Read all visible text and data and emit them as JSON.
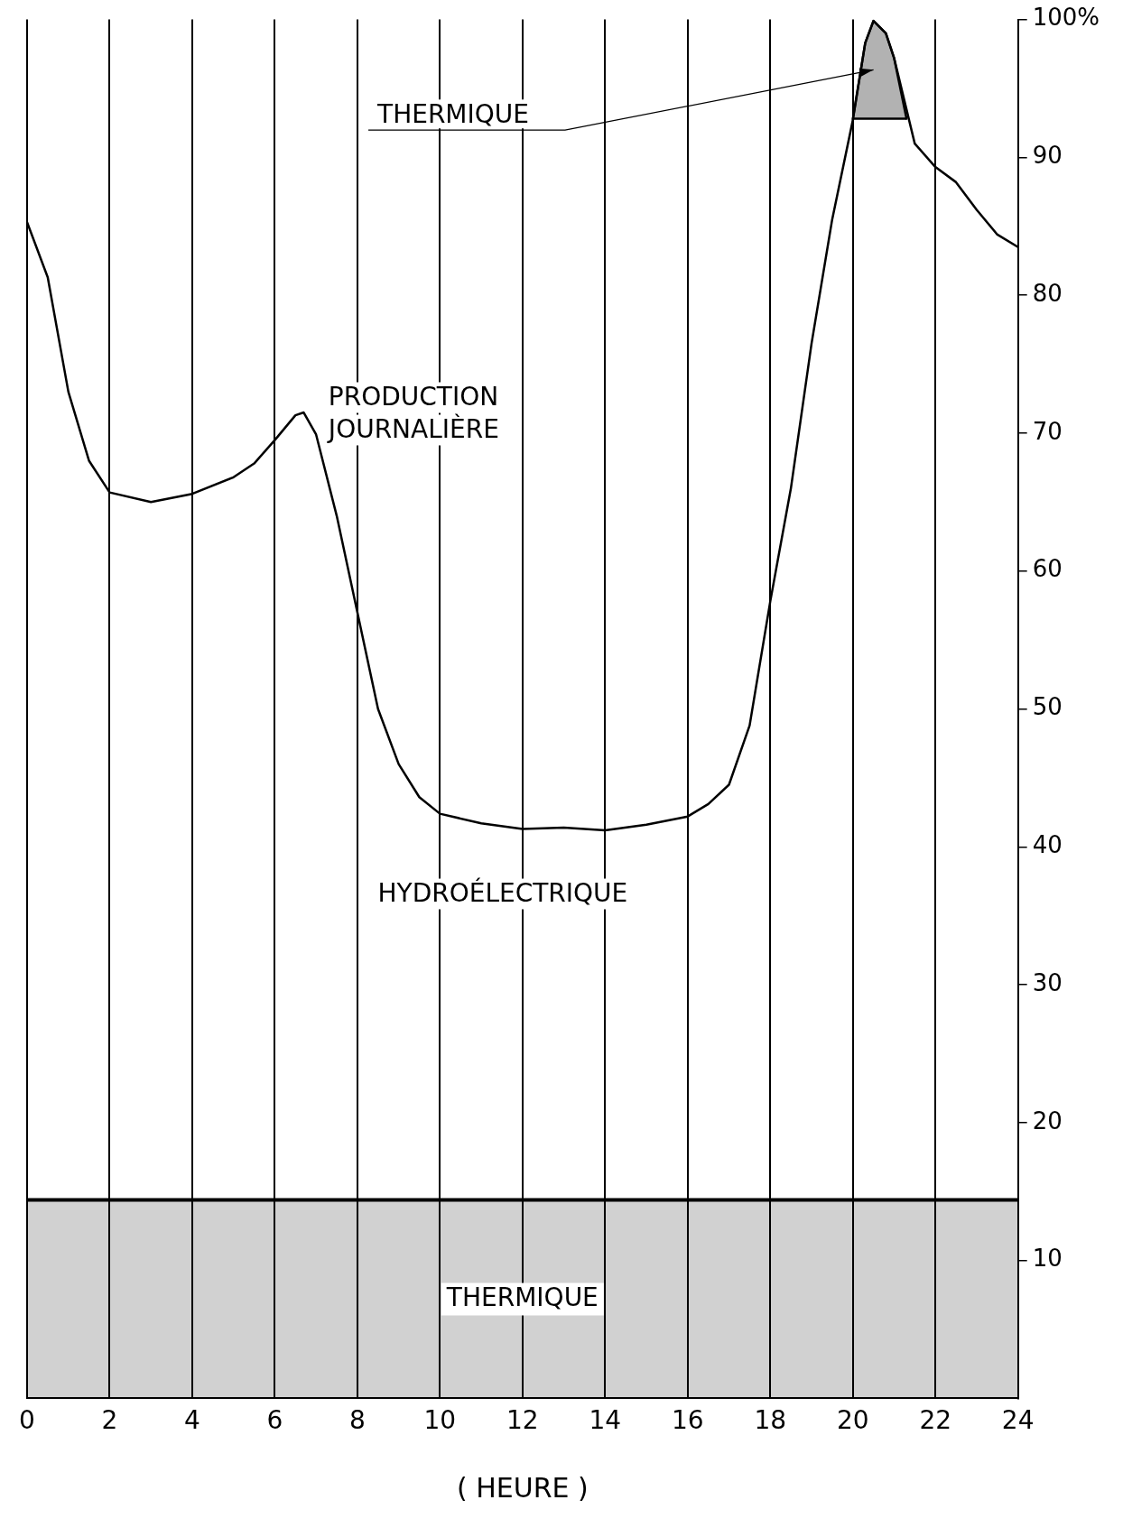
{
  "chart_data": {
    "type": "line",
    "xlabel": "( HEURE )",
    "xlim": [
      0,
      24
    ],
    "xticks": [
      0,
      2,
      4,
      6,
      8,
      10,
      12,
      14,
      16,
      18,
      20,
      22,
      24
    ],
    "ylim": [
      0,
      100
    ],
    "yticks": [
      10,
      20,
      30,
      40,
      50,
      60,
      70,
      80,
      90,
      {
        "value": 100,
        "label": "100%"
      }
    ],
    "grid": "x",
    "legend": false,
    "marker": "none",
    "line_style": "solid",
    "series": [
      {
        "name": "PRODUCTION JOURNALIÈRE",
        "color": "#000000",
        "x": [
          0,
          0.5,
          1,
          1.5,
          2,
          3,
          4,
          5,
          5.5,
          6,
          6.5,
          6.7,
          7,
          7.5,
          8,
          8.5,
          9,
          9.5,
          10,
          11,
          12,
          13,
          14,
          15,
          16,
          16.5,
          17,
          17.5,
          18,
          18.5,
          19,
          19.5,
          20,
          20.3,
          20.5,
          20.8,
          21,
          21.5,
          22,
          22.5,
          23,
          23.5,
          24
        ],
        "values": [
          85.3,
          81.3,
          73,
          68,
          65.7,
          65,
          65.6,
          66.8,
          67.8,
          69.5,
          71.3,
          71.5,
          69.9,
          64,
          57,
          50,
          46,
          43.6,
          42.4,
          41.7,
          41.3,
          41.4,
          41.2,
          41.6,
          42.2,
          43.1,
          44.5,
          48.8,
          57.8,
          66,
          76.5,
          85.5,
          92.7,
          98.3,
          99.9,
          99,
          97.2,
          91,
          89.3,
          88.2,
          86.2,
          84.4,
          83.5
        ]
      },
      {
        "name": "THERMIQUE",
        "type": "area",
        "color": "#000000",
        "x": [
          20,
          20.3,
          20.5,
          20.8,
          21,
          21.3
        ],
        "values": [
          92.8,
          98.3,
          99.9,
          99,
          97.2,
          92.8
        ]
      }
    ],
    "ref_lines": [
      {
        "axis": "y",
        "value": 14.4,
        "color": "#000000"
      }
    ],
    "bands": [
      {
        "axis": "y",
        "from": 0,
        "to": 14.4,
        "label": "THERMIQUE",
        "color": "#000000"
      }
    ],
    "annotations": [
      "HYDROÉLECTRIQUE"
    ]
  }
}
